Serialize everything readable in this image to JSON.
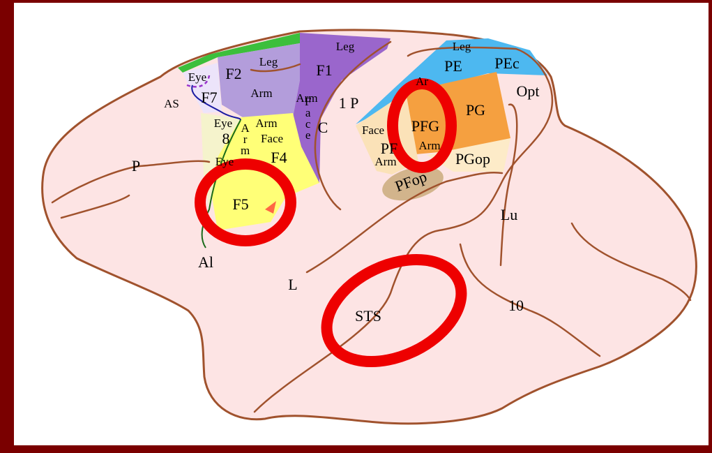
{
  "labels": [
    {
      "text": "Leg"
    },
    {
      "text": "Leg"
    },
    {
      "text": "F2"
    },
    {
      "text": "F1"
    },
    {
      "text": "Eye"
    },
    {
      "text": "F7"
    },
    {
      "text": "AS"
    },
    {
      "text": "Arm"
    },
    {
      "text": "Arm"
    },
    {
      "text": "1 P"
    },
    {
      "text": "C"
    },
    {
      "text": "Eye"
    },
    {
      "text": "8"
    },
    {
      "text": "Arm"
    },
    {
      "text": "Face"
    },
    {
      "text": "F4"
    },
    {
      "text": "Face"
    },
    {
      "text": "Eye"
    },
    {
      "text": "Arm"
    },
    {
      "text": "F5"
    },
    {
      "text": "P"
    },
    {
      "text": "Al"
    },
    {
      "text": "L"
    },
    {
      "text": "STS"
    },
    {
      "text": "10"
    },
    {
      "text": "Lu"
    },
    {
      "text": "Opt"
    },
    {
      "text": "Leg"
    },
    {
      "text": "PE"
    },
    {
      "text": "PEc"
    },
    {
      "text": "Ar"
    },
    {
      "text": "PG"
    },
    {
      "text": "PFG"
    },
    {
      "text": "Face"
    },
    {
      "text": "PF"
    },
    {
      "text": "Arm"
    },
    {
      "text": "Arm"
    },
    {
      "text": "PGop"
    },
    {
      "text": "PFop"
    }
  ]
}
